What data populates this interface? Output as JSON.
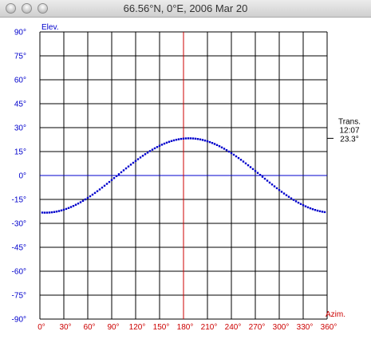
{
  "window": {
    "title": "66.56°N, 0°E, 2006 Mar 20"
  },
  "chart_data": {
    "type": "scatter",
    "xlabel": "Azim.",
    "ylabel": "Elev.",
    "xlim": [
      0,
      360
    ],
    "ylim": [
      -90,
      90
    ],
    "x_ticks": [
      0,
      30,
      60,
      90,
      120,
      150,
      180,
      210,
      240,
      270,
      300,
      330,
      360
    ],
    "y_ticks": [
      90,
      75,
      60,
      45,
      30,
      15,
      0,
      -15,
      -30,
      -45,
      -60,
      -75,
      -90
    ],
    "x_tick_labels": [
      "0°",
      "30°",
      "60°",
      "90°",
      "120°",
      "150°",
      "180°",
      "210°",
      "240°",
      "270°",
      "300°",
      "330°",
      "360°"
    ],
    "y_tick_labels": [
      "90°",
      "75°",
      "60°",
      "45°",
      "30°",
      "15°",
      "0°",
      "-15°",
      "-30°",
      "-45°",
      "-60°",
      "-75°",
      "-90°"
    ],
    "grid": true,
    "colors": {
      "axis_x": "#cc0000",
      "axis_y": "#0000cc",
      "points": "#0000cc",
      "meridian": "#cc0000",
      "horizon": "#0000cc",
      "grid": "#000000"
    },
    "transit": {
      "label": "Trans.",
      "time": "12:07",
      "elev_label": "23.3°",
      "elev": 23.3
    },
    "sun_path": {
      "amplitude": 23.3,
      "phase": 7,
      "step": 3
    }
  }
}
